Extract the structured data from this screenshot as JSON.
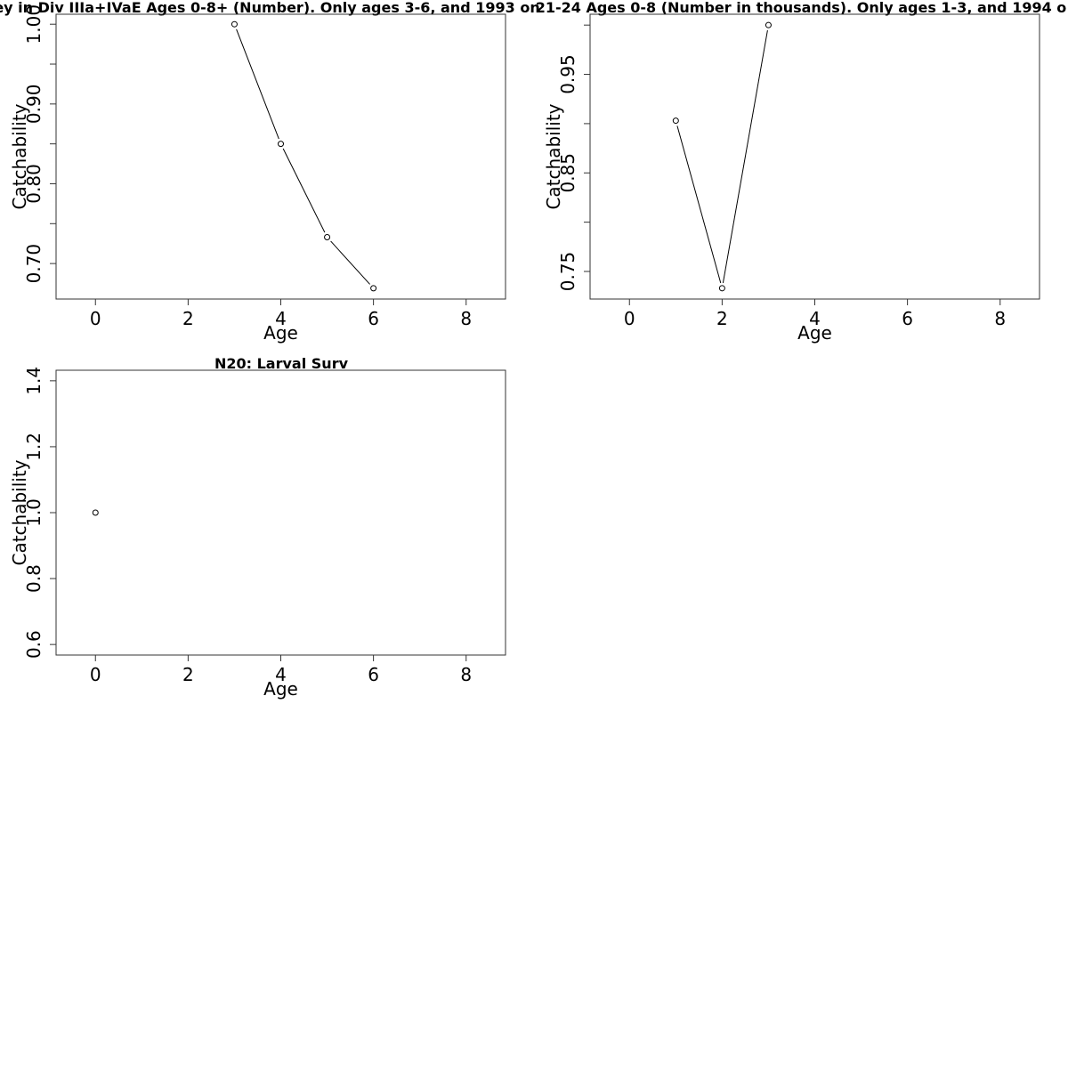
{
  "chart_data": [
    {
      "type": "line",
      "title": "ey in Div IIIa+IVaE Ages 0-8+ (Number). Only ages 3-6, and 1993 on",
      "xlabel": "Age",
      "ylabel": "Catchability",
      "xlim": [
        -0.85,
        8.85
      ],
      "ylim": [
        0.6555,
        1.0125
      ],
      "xticks": [
        0,
        2,
        4,
        6,
        8
      ],
      "xtick_labels": [
        "0",
        "2",
        "4",
        "6",
        "8"
      ],
      "yticks": [
        0.7,
        0.75,
        0.8,
        0.85,
        0.9,
        0.95,
        1.0
      ],
      "ytick_labels": [
        "0.70",
        "",
        "0.80",
        "",
        "0.90",
        "",
        "1.00"
      ],
      "series": [
        {
          "x": [
            3,
            4,
            5,
            6
          ],
          "y": [
            1.0,
            0.85,
            0.733,
            0.669
          ]
        }
      ],
      "grid": false
    },
    {
      "type": "line",
      "title": "21-24 Ages 0-8 (Number in thousands). Only ages 1-3, and 1994 o",
      "xlabel": "Age",
      "ylabel": "Catchability",
      "xlim": [
        -0.85,
        8.85
      ],
      "ylim": [
        0.722,
        1.011
      ],
      "xticks": [
        0,
        2,
        4,
        6,
        8
      ],
      "xtick_labels": [
        "0",
        "2",
        "4",
        "6",
        "8"
      ],
      "yticks": [
        0.75,
        0.8,
        0.85,
        0.9,
        0.95,
        1.0
      ],
      "ytick_labels": [
        "0.75",
        "",
        "0.85",
        "",
        "0.95",
        ""
      ],
      "series": [
        {
          "x": [
            1,
            2,
            3
          ],
          "y": [
            0.903,
            0.733,
            1.0
          ]
        }
      ],
      "grid": false
    },
    {
      "type": "scatter",
      "title": "N20: Larval Surv",
      "xlabel": "Age",
      "ylabel": "Catchability",
      "xlim": [
        -0.85,
        8.85
      ],
      "ylim": [
        0.568,
        1.432
      ],
      "xticks": [
        0,
        2,
        4,
        6,
        8
      ],
      "xtick_labels": [
        "0",
        "2",
        "4",
        "6",
        "8"
      ],
      "yticks": [
        0.6,
        0.8,
        1.0,
        1.2,
        1.4
      ],
      "ytick_labels": [
        "0.6",
        "0.8",
        "1.0",
        "1.2",
        "1.4"
      ],
      "series": [
        {
          "x": [
            0
          ],
          "y": [
            1.0
          ]
        }
      ],
      "grid": false
    }
  ]
}
